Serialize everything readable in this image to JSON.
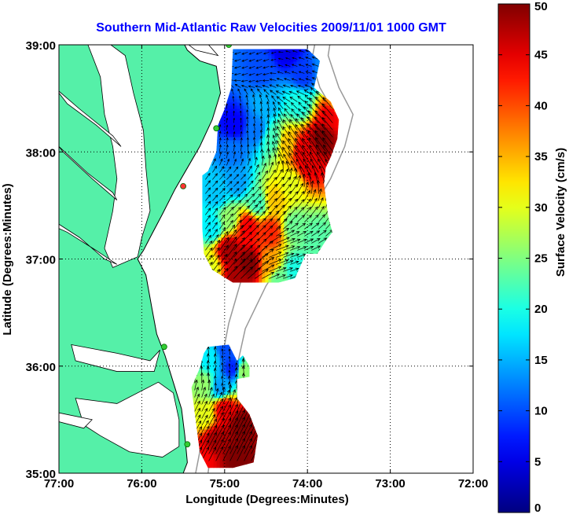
{
  "chart_data": {
    "type": "heatmap",
    "title": "Southern Mid-Atlantic Raw Velocities 2009/11/01 1000 GMT",
    "xlabel": "Longitude (Degrees:Minutes)",
    "ylabel": "Latitude (Degrees:Minutes)",
    "xlim": [
      -77,
      -72
    ],
    "ylim": [
      35,
      39
    ],
    "x_ticks": [
      {
        "value": -77,
        "label": "77:00"
      },
      {
        "value": -76,
        "label": "76:00"
      },
      {
        "value": -75,
        "label": "75:00"
      },
      {
        "value": -74,
        "label": "74:00"
      },
      {
        "value": -73,
        "label": "73:00"
      },
      {
        "value": -72,
        "label": "72:00"
      }
    ],
    "y_ticks": [
      {
        "value": 35,
        "label": "35:00"
      },
      {
        "value": 36,
        "label": "36:00"
      },
      {
        "value": 37,
        "label": "37:00"
      },
      {
        "value": 38,
        "label": "38:00"
      },
      {
        "value": 39,
        "label": "39:00"
      }
    ],
    "grid": true,
    "colorbar": {
      "label": "Surface Velocity (cm/s)",
      "range": [
        0,
        50
      ],
      "ticks": [
        {
          "value": 0,
          "label": "0"
        },
        {
          "value": 5,
          "label": "5"
        },
        {
          "value": 10,
          "label": "10"
        },
        {
          "value": 15,
          "label": "15"
        },
        {
          "value": 20,
          "label": "20"
        },
        {
          "value": 25,
          "label": "25"
        },
        {
          "value": 30,
          "label": "30"
        },
        {
          "value": 35,
          "label": "35"
        },
        {
          "value": 40,
          "label": "40"
        },
        {
          "value": 45,
          "label": "45"
        },
        {
          "value": 50,
          "label": "50"
        }
      ],
      "colormap": "jet"
    },
    "colors": {
      "land": "#55f0a8",
      "water": "#ffffff",
      "station": "#33cc33",
      "station_alt": "#ff3333"
    },
    "stations": [
      {
        "lon": -74.95,
        "lat": 39.0,
        "status": "ok"
      },
      {
        "lon": -75.1,
        "lat": 38.22,
        "status": "ok"
      },
      {
        "lon": -75.5,
        "lat": 37.68,
        "status": "down"
      },
      {
        "lon": -75.73,
        "lat": 36.18,
        "status": "ok"
      },
      {
        "lon": -75.45,
        "lat": 35.27,
        "status": "ok"
      }
    ],
    "velocity_field": {
      "regions": [
        {
          "name": "north",
          "polygon": [
            [
              -74.9,
              38.96
            ],
            [
              -74.0,
              38.96
            ],
            [
              -73.85,
              38.85
            ],
            [
              -73.92,
              38.6
            ],
            [
              -73.72,
              38.47
            ],
            [
              -73.62,
              38.3
            ],
            [
              -73.64,
              38.12
            ],
            [
              -73.72,
              37.95
            ],
            [
              -73.78,
              37.85
            ],
            [
              -73.8,
              37.7
            ],
            [
              -73.75,
              37.4
            ],
            [
              -73.7,
              37.25
            ],
            [
              -73.78,
              37.17
            ],
            [
              -73.88,
              37.05
            ],
            [
              -74.02,
              37.05
            ],
            [
              -74.15,
              36.82
            ],
            [
              -74.35,
              36.78
            ],
            [
              -74.6,
              36.78
            ],
            [
              -74.9,
              36.78
            ],
            [
              -75.15,
              36.9
            ],
            [
              -75.25,
              37.05
            ],
            [
              -75.27,
              37.3
            ],
            [
              -75.27,
              37.78
            ],
            [
              -75.2,
              37.82
            ],
            [
              -75.1,
              38.0
            ],
            [
              -75.08,
              38.25
            ],
            [
              -75.0,
              38.4
            ],
            [
              -74.92,
              38.6
            ],
            [
              -74.9,
              38.96
            ]
          ],
          "sources": [
            {
              "lon": -74.25,
              "lat": 38.95,
              "v": 5
            },
            {
              "lon": -74.55,
              "lat": 38.75,
              "v": 10
            },
            {
              "lon": -74.05,
              "lat": 38.72,
              "v": 9
            },
            {
              "lon": -73.78,
              "lat": 38.75,
              "v": 13
            },
            {
              "lon": -73.65,
              "lat": 38.45,
              "v": 35
            },
            {
              "lon": -73.72,
              "lat": 38.35,
              "v": 45
            },
            {
              "lon": -73.82,
              "lat": 38.12,
              "v": 50
            },
            {
              "lon": -74.05,
              "lat": 38.02,
              "v": 45
            },
            {
              "lon": -74.25,
              "lat": 38.08,
              "v": 34
            },
            {
              "lon": -74.42,
              "lat": 38.12,
              "v": 22
            },
            {
              "lon": -74.62,
              "lat": 38.2,
              "v": 12
            },
            {
              "lon": -74.88,
              "lat": 38.25,
              "v": 6
            },
            {
              "lon": -74.9,
              "lat": 38.0,
              "v": 12
            },
            {
              "lon": -74.5,
              "lat": 38.45,
              "v": 15
            },
            {
              "lon": -74.1,
              "lat": 38.45,
              "v": 20
            },
            {
              "lon": -73.98,
              "lat": 37.88,
              "v": 45
            },
            {
              "lon": -74.2,
              "lat": 37.7,
              "v": 30
            },
            {
              "lon": -74.4,
              "lat": 37.55,
              "v": 34
            },
            {
              "lon": -74.6,
              "lat": 37.52,
              "v": 22
            },
            {
              "lon": -74.85,
              "lat": 37.72,
              "v": 14
            },
            {
              "lon": -75.1,
              "lat": 37.6,
              "v": 16
            },
            {
              "lon": -75.15,
              "lat": 37.3,
              "v": 18
            },
            {
              "lon": -74.95,
              "lat": 37.38,
              "v": 26
            },
            {
              "lon": -74.72,
              "lat": 37.3,
              "v": 44
            },
            {
              "lon": -74.45,
              "lat": 37.25,
              "v": 42
            },
            {
              "lon": -74.15,
              "lat": 37.3,
              "v": 24
            },
            {
              "lon": -73.9,
              "lat": 37.2,
              "v": 23
            },
            {
              "lon": -74.95,
              "lat": 37.08,
              "v": 48
            },
            {
              "lon": -74.7,
              "lat": 36.95,
              "v": 50
            },
            {
              "lon": -74.45,
              "lat": 36.95,
              "v": 36
            },
            {
              "lon": -74.15,
              "lat": 36.9,
              "v": 20
            },
            {
              "lon": -75.18,
              "lat": 36.92,
              "v": 30
            },
            {
              "lon": -74.85,
              "lat": 36.82,
              "v": 48
            },
            {
              "lon": -74.35,
              "lat": 36.82,
              "v": 24
            }
          ],
          "flow": [
            {
              "lon": -74.6,
              "lat": 38.9,
              "u": -0.6,
              "w": -0.2
            },
            {
              "lon": -74.1,
              "lat": 38.7,
              "u": -0.6,
              "w": 0.2
            },
            {
              "lon": -73.9,
              "lat": 38.3,
              "u": -0.5,
              "w": 0.6
            },
            {
              "lon": -74.1,
              "lat": 38.05,
              "u": -0.5,
              "w": 0.7
            },
            {
              "lon": -74.6,
              "lat": 38.2,
              "u": -0.1,
              "w": 0.8
            },
            {
              "lon": -74.9,
              "lat": 38.1,
              "u": 0.1,
              "w": 0.7
            },
            {
              "lon": -74.9,
              "lat": 37.6,
              "u": 0.6,
              "w": 0.6
            },
            {
              "lon": -74.4,
              "lat": 37.5,
              "u": 0.55,
              "w": 0.65
            },
            {
              "lon": -74.7,
              "lat": 37.2,
              "u": 0.6,
              "w": 0.6
            },
            {
              "lon": -74.3,
              "lat": 37.0,
              "u": 0.8,
              "w": 0.3
            },
            {
              "lon": -75.1,
              "lat": 37.2,
              "u": 0.5,
              "w": 0.7
            }
          ]
        },
        {
          "name": "south",
          "polygon": [
            [
              -75.2,
              36.18
            ],
            [
              -74.95,
              36.2
            ],
            [
              -74.85,
              36.05
            ],
            [
              -74.78,
              36.1
            ],
            [
              -74.7,
              36.0
            ],
            [
              -74.7,
              35.9
            ],
            [
              -74.85,
              35.88
            ],
            [
              -74.85,
              35.7
            ],
            [
              -74.7,
              35.55
            ],
            [
              -74.6,
              35.35
            ],
            [
              -74.65,
              35.1
            ],
            [
              -74.9,
              35.05
            ],
            [
              -75.2,
              35.05
            ],
            [
              -75.3,
              35.2
            ],
            [
              -75.35,
              35.5
            ],
            [
              -75.4,
              35.8
            ],
            [
              -75.3,
              35.98
            ],
            [
              -75.25,
              36.12
            ],
            [
              -75.2,
              36.18
            ]
          ],
          "sources": [
            {
              "lon": -74.98,
              "lat": 36.15,
              "v": 10
            },
            {
              "lon": -75.18,
              "lat": 36.08,
              "v": 18
            },
            {
              "lon": -74.9,
              "lat": 35.98,
              "v": 8
            },
            {
              "lon": -74.78,
              "lat": 35.95,
              "v": 26
            },
            {
              "lon": -75.25,
              "lat": 35.82,
              "v": 26
            },
            {
              "lon": -75.05,
              "lat": 35.8,
              "v": 14
            },
            {
              "lon": -75.25,
              "lat": 35.55,
              "v": 30
            },
            {
              "lon": -75.0,
              "lat": 35.6,
              "v": 45
            },
            {
              "lon": -74.8,
              "lat": 35.45,
              "v": 50
            },
            {
              "lon": -75.1,
              "lat": 35.3,
              "v": 48
            },
            {
              "lon": -74.85,
              "lat": 35.15,
              "v": 50
            },
            {
              "lon": -75.25,
              "lat": 35.15,
              "v": 44
            }
          ],
          "flow": [
            {
              "lon": -75.0,
              "lat": 35.9,
              "u": -0.1,
              "w": 0.8
            },
            {
              "lon": -75.1,
              "lat": 35.5,
              "u": 0.4,
              "w": 0.7
            },
            {
              "lon": -74.85,
              "lat": 35.25,
              "u": 0.4,
              "w": 0.8
            }
          ]
        }
      ]
    }
  }
}
